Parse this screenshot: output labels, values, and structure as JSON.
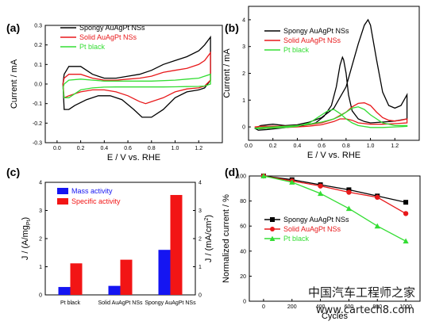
{
  "chart_data": [
    {
      "panel": "(a)",
      "type": "line",
      "xlabel": "E / V vs. RHE",
      "ylabel": "Current / mA",
      "xlim": [
        -0.1,
        1.4
      ],
      "ylim": [
        -0.3,
        0.3
      ],
      "xticks": [
        "0.0",
        "0.2",
        "0.4",
        "0.6",
        "0.8",
        "1.0",
        "1.2"
      ],
      "xtick_values": [
        0.0,
        0.2,
        0.4,
        0.6,
        0.8,
        1.0,
        1.2
      ],
      "yticks": [
        "-0.3",
        "-0.2",
        "-0.1",
        "0.0",
        "0.1",
        "0.2",
        "0.3"
      ],
      "ytick_values": [
        -0.3,
        -0.2,
        -0.1,
        0.0,
        0.1,
        0.2,
        0.3
      ],
      "grid": false,
      "legend_position": "top-left",
      "series": [
        {
          "name": "Spongy AuAgPt NSs",
          "color": "#000000",
          "x": [
            0.05,
            0.06,
            0.1,
            0.2,
            0.3,
            0.4,
            0.5,
            0.6,
            0.7,
            0.8,
            0.9,
            1.0,
            1.1,
            1.2,
            1.25,
            1.3,
            1.3,
            1.25,
            1.2,
            1.1,
            1.0,
            0.9,
            0.8,
            0.72,
            0.65,
            0.55,
            0.45,
            0.35,
            0.25,
            0.15,
            0.1,
            0.06,
            0.05
          ],
          "y": [
            0.0,
            0.05,
            0.09,
            0.09,
            0.05,
            0.03,
            0.03,
            0.04,
            0.05,
            0.07,
            0.1,
            0.12,
            0.14,
            0.17,
            0.2,
            0.24,
            0.02,
            -0.02,
            -0.03,
            -0.04,
            -0.07,
            -0.13,
            -0.17,
            -0.17,
            -0.13,
            -0.08,
            -0.06,
            -0.06,
            -0.08,
            -0.11,
            -0.13,
            -0.13,
            0.0
          ]
        },
        {
          "name": "Solid AuAgPt NSs",
          "color": "#e8191b",
          "x": [
            0.05,
            0.06,
            0.1,
            0.2,
            0.3,
            0.4,
            0.5,
            0.6,
            0.7,
            0.8,
            0.9,
            1.0,
            1.1,
            1.2,
            1.25,
            1.3,
            1.3,
            1.25,
            1.2,
            1.1,
            1.0,
            0.9,
            0.8,
            0.75,
            0.7,
            0.6,
            0.5,
            0.4,
            0.3,
            0.2,
            0.1,
            0.06,
            0.05
          ],
          "y": [
            0.0,
            0.03,
            0.05,
            0.05,
            0.03,
            0.02,
            0.02,
            0.025,
            0.03,
            0.04,
            0.06,
            0.07,
            0.08,
            0.1,
            0.12,
            0.16,
            0.02,
            -0.01,
            -0.02,
            -0.025,
            -0.04,
            -0.07,
            -0.09,
            -0.1,
            -0.09,
            -0.06,
            -0.04,
            -0.03,
            -0.03,
            -0.04,
            -0.06,
            -0.07,
            0.0
          ]
        },
        {
          "name": "Pt black",
          "color": "#33dd33",
          "x": [
            0.05,
            0.06,
            0.1,
            0.2,
            0.3,
            0.4,
            0.6,
            0.8,
            1.0,
            1.1,
            1.2,
            1.25,
            1.3,
            1.3,
            1.25,
            1.2,
            1.1,
            1.0,
            0.9,
            0.8,
            0.7,
            0.6,
            0.5,
            0.4,
            0.3,
            0.2,
            0.15,
            0.1,
            0.06,
            0.05
          ],
          "y": [
            -0.02,
            0.0,
            0.02,
            0.025,
            0.02,
            0.015,
            0.015,
            0.015,
            0.02,
            0.025,
            0.03,
            0.04,
            0.05,
            0.0,
            -0.01,
            -0.012,
            -0.013,
            -0.014,
            -0.015,
            -0.015,
            -0.015,
            -0.015,
            -0.015,
            -0.016,
            -0.02,
            -0.03,
            -0.05,
            -0.07,
            -0.07,
            -0.02
          ]
        }
      ]
    },
    {
      "panel": "(b)",
      "type": "line",
      "xlabel": "E / V vs. RHE",
      "ylabel": "Current / mA",
      "xlim": [
        0.0,
        1.4
      ],
      "ylim": [
        -0.5,
        4.5
      ],
      "xticks": [
        "0.0",
        "0.2",
        "0.4",
        "0.6",
        "0.8",
        "1.0",
        "1.2"
      ],
      "xtick_values": [
        0.0,
        0.2,
        0.4,
        0.6,
        0.8,
        1.0,
        1.2
      ],
      "yticks": [
        "0",
        "1",
        "2",
        "3",
        "4"
      ],
      "ytick_values": [
        0,
        1,
        2,
        3,
        4
      ],
      "grid": false,
      "legend_position": "top-left",
      "series": [
        {
          "name": "Spongy AuAgPt NSs",
          "color": "#000000",
          "x": [
            0.05,
            0.1,
            0.2,
            0.3,
            0.4,
            0.5,
            0.6,
            0.7,
            0.8,
            0.85,
            0.9,
            0.95,
            0.98,
            1.0,
            1.05,
            1.1,
            1.15,
            1.2,
            1.25,
            1.3,
            1.3,
            1.2,
            1.1,
            1.0,
            0.95,
            0.9,
            0.85,
            0.82,
            0.8,
            0.78,
            0.77,
            0.75,
            0.72,
            0.68,
            0.62,
            0.55,
            0.45,
            0.35,
            0.25,
            0.15,
            0.08,
            0.05
          ],
          "y": [
            -0.05,
            0.05,
            0.1,
            0.05,
            0.08,
            0.18,
            0.35,
            0.7,
            1.5,
            2.3,
            3.1,
            3.8,
            4.0,
            3.8,
            2.5,
            1.3,
            0.8,
            0.7,
            0.8,
            1.2,
            0.3,
            0.22,
            0.18,
            0.15,
            0.2,
            0.3,
            0.6,
            1.2,
            2.0,
            2.5,
            2.6,
            2.3,
            1.5,
            0.8,
            0.4,
            0.15,
            0.05,
            0.0,
            -0.05,
            -0.1,
            -0.12,
            -0.05
          ]
        },
        {
          "name": "Solid AuAgPt NSs",
          "color": "#e8191b",
          "x": [
            0.05,
            0.1,
            0.2,
            0.3,
            0.4,
            0.5,
            0.6,
            0.7,
            0.8,
            0.85,
            0.9,
            0.95,
            1.0,
            1.05,
            1.1,
            1.15,
            1.2,
            1.25,
            1.3,
            1.3,
            1.2,
            1.1,
            1.0,
            0.9,
            0.85,
            0.8,
            0.75,
            0.7,
            0.6,
            0.5,
            0.4,
            0.3,
            0.2,
            0.1,
            0.05
          ],
          "y": [
            0.0,
            0.02,
            0.03,
            0.03,
            0.05,
            0.08,
            0.15,
            0.3,
            0.55,
            0.75,
            0.88,
            0.9,
            0.8,
            0.55,
            0.35,
            0.25,
            0.22,
            0.25,
            0.3,
            0.15,
            0.12,
            0.1,
            0.1,
            0.15,
            0.25,
            0.3,
            0.3,
            0.2,
            0.08,
            0.03,
            0.0,
            -0.02,
            -0.03,
            -0.05,
            0.0
          ]
        },
        {
          "name": "Pt black",
          "color": "#33dd33",
          "x": [
            0.05,
            0.1,
            0.2,
            0.3,
            0.4,
            0.5,
            0.6,
            0.7,
            0.75,
            0.8,
            0.85,
            0.9,
            0.95,
            1.0,
            1.05,
            1.1,
            1.2,
            1.3,
            1.3,
            1.2,
            1.1,
            1.0,
            0.9,
            0.85,
            0.8,
            0.75,
            0.7,
            0.65,
            0.6,
            0.5,
            0.4,
            0.3,
            0.2,
            0.1,
            0.05
          ],
          "y": [
            -0.05,
            -0.02,
            0.0,
            0.02,
            0.05,
            0.1,
            0.18,
            0.3,
            0.4,
            0.55,
            0.7,
            0.75,
            0.65,
            0.45,
            0.3,
            0.15,
            0.05,
            0.05,
            0.02,
            0.0,
            -0.02,
            -0.02,
            0.05,
            0.15,
            0.3,
            0.5,
            0.65,
            0.6,
            0.45,
            0.15,
            0.02,
            -0.02,
            -0.04,
            -0.07,
            -0.05
          ]
        }
      ]
    },
    {
      "panel": "(c)",
      "type": "bar",
      "categories": [
        "Pt black",
        "Solid AuAgPt NSs",
        "Spongy AuAgPt NSs"
      ],
      "ylabel_left": "J / (A/mg",
      "ylabel_left_sub": "Pt",
      "ylabel_left_end": ")",
      "ylabel_right": "J / (mA/cm",
      "ylabel_right_sup": "2",
      "ylabel_right_end": ")",
      "ylim_left": [
        0,
        4
      ],
      "ylim_right": [
        0,
        4
      ],
      "yticks_left": [
        "0",
        "1",
        "2",
        "3",
        "4"
      ],
      "yticks_right": [
        "0",
        "1",
        "2",
        "3",
        "4"
      ],
      "grid": false,
      "legend_position": "top-left",
      "series": [
        {
          "name": "Mass activity",
          "axis": "left",
          "color": "#1515f2",
          "values": [
            0.28,
            0.32,
            1.6
          ]
        },
        {
          "name": "Specific activity",
          "axis": "right",
          "color": "#f21515",
          "values": [
            1.12,
            1.25,
            3.55
          ]
        }
      ]
    },
    {
      "panel": "(d)",
      "type": "line",
      "xlabel": "Cycles",
      "ylabel": "Normalized current / %",
      "xlim": [
        -100,
        1100
      ],
      "ylim": [
        0,
        100
      ],
      "xticks": [
        "0",
        "200",
        "400",
        "600",
        "800",
        "1000"
      ],
      "xtick_values": [
        0,
        200,
        400,
        600,
        800,
        1000
      ],
      "yticks": [
        "0",
        "20",
        "40",
        "60",
        "80",
        "100"
      ],
      "ytick_values": [
        0,
        20,
        40,
        60,
        80,
        100
      ],
      "grid": false,
      "legend_position": "center-left",
      "series": [
        {
          "name": "Spongy AuAgPt NSs",
          "color": "#000000",
          "marker": "square",
          "x": [
            0,
            200,
            400,
            600,
            800,
            1000
          ],
          "y": [
            100,
            97,
            93,
            89,
            84,
            79
          ]
        },
        {
          "name": "Solid AuAgPt NSs",
          "color": "#e8191b",
          "marker": "circle",
          "x": [
            0,
            200,
            400,
            600,
            800,
            1000
          ],
          "y": [
            100,
            96,
            92,
            87,
            83,
            70
          ]
        },
        {
          "name": "Pt black",
          "color": "#33dd33",
          "marker": "triangle",
          "x": [
            0,
            200,
            400,
            600,
            800,
            1000
          ],
          "y": [
            100,
            95,
            86,
            74,
            60,
            48
          ]
        }
      ]
    }
  ],
  "watermark": {
    "line1": "中国汽车工程师之家",
    "line2": "www.cartech8.com"
  }
}
